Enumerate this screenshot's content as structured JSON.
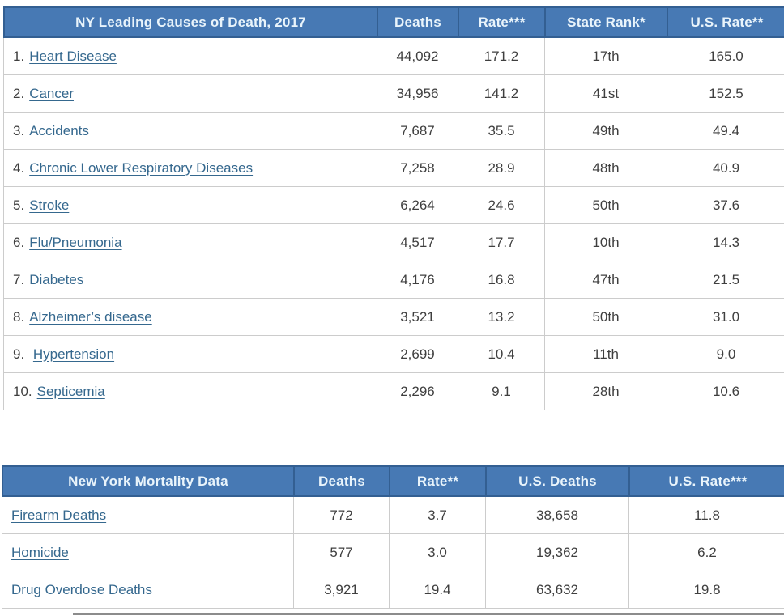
{
  "colors": {
    "header_bg": "#4779b4",
    "header_border": "#335f92",
    "header_text": "#e9f4fb",
    "link": "#35688e",
    "body_text": "#3f3f3f",
    "row_border": "#cccccc",
    "bottom_divider": "#8c8c8c"
  },
  "table1": {
    "title": "NY Leading Causes of Death, 2017",
    "columns": [
      "Deaths",
      "Rate***",
      "State Rank*",
      "U.S. Rate**"
    ],
    "rows": [
      {
        "rank": "1.",
        "cause": "Heart Disease",
        "deaths": "44,092",
        "rate": "171.2",
        "state_rank": "17th",
        "us_rate": "165.0"
      },
      {
        "rank": "2.",
        "cause": "Cancer",
        "deaths": "34,956",
        "rate": "141.2",
        "state_rank": "41st",
        "us_rate": "152.5"
      },
      {
        "rank": "3.",
        "cause": "Accidents",
        "deaths": "7,687",
        "rate": "35.5",
        "state_rank": "49th",
        "us_rate": "49.4"
      },
      {
        "rank": "4.",
        "cause": "Chronic Lower Respiratory Diseases",
        "deaths": "7,258",
        "rate": "28.9",
        "state_rank": "48th",
        "us_rate": "40.9"
      },
      {
        "rank": "5.",
        "cause": "Stroke",
        "deaths": "6,264",
        "rate": "24.6",
        "state_rank": "50th",
        "us_rate": "37.6"
      },
      {
        "rank": "6.",
        "cause": "Flu/Pneumonia",
        "deaths": "4,517",
        "rate": "17.7",
        "state_rank": "10th",
        "us_rate": "14.3"
      },
      {
        "rank": "7.",
        "cause": "Diabetes",
        "deaths": "4,176",
        "rate": "16.8",
        "state_rank": "47th",
        "us_rate": "21.5"
      },
      {
        "rank": "8.",
        "cause": "Alzheimer’s disease",
        "deaths": "3,521",
        "rate": "13.2",
        "state_rank": "50th",
        "us_rate": "31.0"
      },
      {
        "rank": "9. ",
        "cause": "Hypertension",
        "deaths": "2,699",
        "rate": "10.4",
        "state_rank": "11th",
        "us_rate": "9.0"
      },
      {
        "rank": "10.",
        "cause": "Septicemia",
        "deaths": "2,296",
        "rate": "9.1",
        "state_rank": "28th",
        "us_rate": "10.6"
      }
    ]
  },
  "table2": {
    "title": "New York Mortality Data",
    "columns": [
      "Deaths",
      "Rate**",
      "U.S. Deaths",
      "U.S. Rate***"
    ],
    "rows": [
      {
        "cause": "Firearm Deaths",
        "deaths": "772",
        "rate": "3.7",
        "us_deaths": "38,658",
        "us_rate": "11.8"
      },
      {
        "cause": "Homicide",
        "deaths": "577",
        "rate": "3.0",
        "us_deaths": "19,362",
        "us_rate": "6.2"
      },
      {
        "cause": "Drug Overdose Deaths",
        "deaths": "3,921",
        "rate": "19.4",
        "us_deaths": "63,632",
        "us_rate": "19.8"
      }
    ]
  }
}
